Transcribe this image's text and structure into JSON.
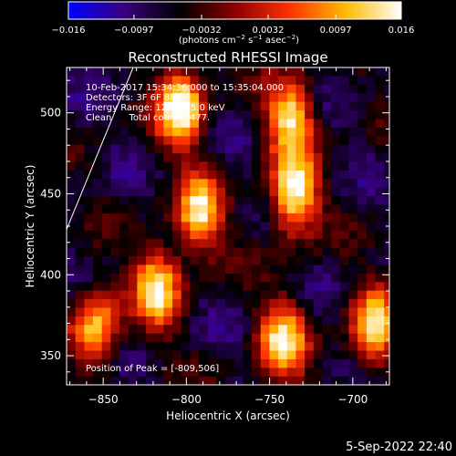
{
  "chart_data": {
    "type": "heatmap",
    "title": "Reconstructed RHESSI Image",
    "xlabel": "Heliocentric X (arcsec)",
    "ylabel": "Heliocentric Y (arcsec)",
    "xlim": [
      -872,
      -678
    ],
    "ylim": [
      332,
      528
    ],
    "xticks": [
      -850,
      -800,
      -750,
      -700
    ],
    "yticks": [
      350,
      400,
      450,
      500
    ],
    "xtick_labels": [
      "−850",
      "−800",
      "−750",
      "−700"
    ],
    "ytick_labels": [
      "350",
      "400",
      "450",
      "500"
    ],
    "colorbar": {
      "range": [
        -0.016,
        0.016
      ],
      "ticks": [
        -0.016,
        -0.0097,
        -0.0032,
        0.0032,
        0.0097,
        0.016
      ],
      "tick_labels": [
        "−0.016",
        "−0.0097",
        "−0.0032",
        "0.0032",
        "0.0097",
        "0.016"
      ],
      "label": "(photons cm",
      "label_exp1": "−2",
      "label_mid": " s",
      "label_exp2": "−1",
      "label_end": " asec",
      "label_exp3": "−2",
      "label_close": ")",
      "stops": [
        "#0000ff",
        "#3a0080",
        "#000000",
        "#8b0000",
        "#ff3300",
        "#ffbb00",
        "#ffffff"
      ]
    },
    "sources": [
      {
        "x": -806,
        "y": 506,
        "peak": 0.016
      },
      {
        "x": -738,
        "y": 452,
        "peak": 0.015
      },
      {
        "x": -740,
        "y": 500,
        "peak": 0.012
      },
      {
        "x": -795,
        "y": 440,
        "peak": 0.012
      },
      {
        "x": -820,
        "y": 395,
        "peak": 0.012
      },
      {
        "x": -745,
        "y": 362,
        "peak": 0.012
      },
      {
        "x": -690,
        "y": 370,
        "peak": 0.012
      },
      {
        "x": -857,
        "y": 370,
        "peak": 0.01
      }
    ],
    "annotations": {
      "line1": "10-Feb-2017 15:34:36.000 to 15:35:04.000",
      "line2": "Detectors: 3F 6F 8F 9F",
      "line3": "Energy Range: 12.0 - 25.0 keV",
      "line4": "Clean      Total counts: 477.",
      "peak": "Position of Peak = [-809,506]"
    },
    "limb_line": [
      [
        -872,
        428
      ],
      [
        -832,
        528
      ]
    ]
  },
  "timestamp": "5-Sep-2022 22:40"
}
